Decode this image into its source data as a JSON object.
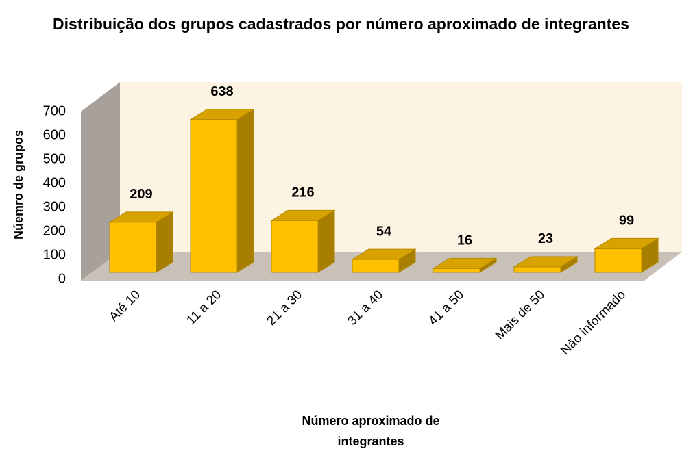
{
  "chart_data": {
    "type": "bar3d",
    "title": "Distribuição dos grupos cadastrados por número aproximado de integrantes",
    "y_label": "Núemro de grupos",
    "x_label": "Número aproximado de integrantes",
    "categories": [
      "Até 10",
      "11 a 20",
      "21 a 30",
      "31 a 40",
      "41 a 50",
      "Mais de 50",
      "Não informado"
    ],
    "values": [
      209,
      638,
      216,
      54,
      16,
      23,
      99
    ],
    "color": "#ffc000",
    "ylim": [
      0,
      700
    ],
    "yticks": [
      0,
      100,
      200,
      300,
      400,
      500,
      600,
      700
    ]
  }
}
